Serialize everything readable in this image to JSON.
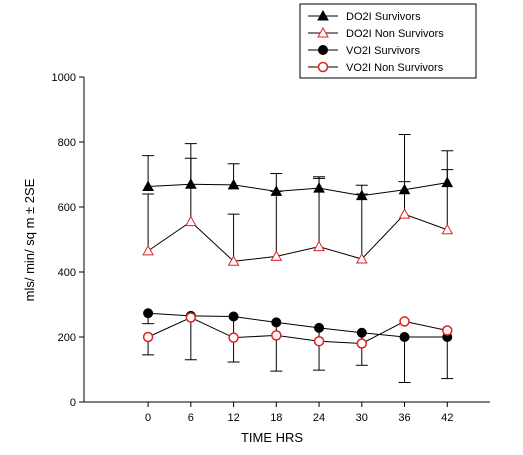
{
  "chart_data": {
    "type": "line",
    "title": "",
    "xlabel": "TIME HRS",
    "ylabel": "mls/ min/ sq m ± 2SE",
    "xlim": [
      -9,
      48
    ],
    "ylim": [
      0,
      1000
    ],
    "x": [
      0,
      6,
      12,
      18,
      24,
      30,
      36,
      42
    ],
    "xticks": [
      "0",
      "6",
      "12",
      "18",
      "24",
      "30",
      "36",
      "42"
    ],
    "yticks": [
      "0",
      "200",
      "400",
      "600",
      "800",
      "1000"
    ],
    "grid": false,
    "legend_position": "top-right",
    "series": [
      {
        "name": "DO2I Survivors",
        "marker": "filled-triangle",
        "color": "#000000",
        "values": [
          663,
          670,
          668,
          648,
          658,
          635,
          653,
          675
        ],
        "error": [
          95,
          125,
          65,
          55,
          35,
          32,
          170,
          98
        ],
        "error_direction": "up"
      },
      {
        "name": "DO2I Non Survivors",
        "marker": "open-triangle",
        "color": "#e02020",
        "values": [
          465,
          555,
          433,
          448,
          478,
          440,
          578,
          530
        ],
        "error": [
          175,
          195,
          145,
          200,
          210,
          200,
          100,
          185
        ],
        "error_direction": "up"
      },
      {
        "name": "VO2I Survivors",
        "marker": "filled-circle",
        "color": "#000000",
        "values": [
          273,
          265,
          263,
          245,
          228,
          213,
          200,
          200
        ],
        "error": [
          32,
          135,
          140,
          150,
          130,
          100,
          140,
          128
        ],
        "error_direction": "down"
      },
      {
        "name": "VO2I Non Survivors",
        "marker": "open-circle",
        "color": "#e02020",
        "values": [
          200,
          260,
          198,
          205,
          187,
          180,
          248,
          220
        ],
        "error": [
          55,
          0,
          0,
          0,
          0,
          0,
          0,
          0
        ],
        "error_direction": "down"
      }
    ]
  }
}
